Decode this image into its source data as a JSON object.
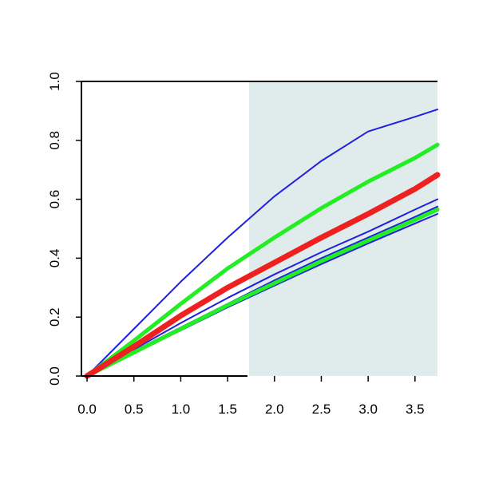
{
  "chart_data": {
    "type": "line",
    "title": "",
    "xlabel": "",
    "ylabel": "",
    "xlim": [
      -0.06,
      3.74
    ],
    "ylim": [
      0.0,
      1.0
    ],
    "grid": false,
    "legend": "none",
    "shaded_region": {
      "x_from": 1.73,
      "x_to": 3.74,
      "color": "#e0ecec"
    },
    "x_ticks": [
      "0.0",
      "0.5",
      "1.0",
      "1.5",
      "2.0",
      "2.5",
      "3.0",
      "3.5"
    ],
    "y_ticks": [
      "0.0",
      "0.2",
      "0.4",
      "0.6",
      "0.8",
      "1.0"
    ],
    "series": [
      {
        "color": "#2020dd",
        "style": "thin",
        "x": [
          0.0,
          0.5,
          1.0,
          1.5,
          2.0,
          2.5,
          3.0,
          3.5,
          3.74
        ],
        "y": [
          0.0,
          0.16,
          0.32,
          0.47,
          0.61,
          0.73,
          0.83,
          0.88,
          0.905
        ]
      },
      {
        "color": "#22ee22",
        "style": "thick",
        "x": [
          0.0,
          0.5,
          1.0,
          1.5,
          2.0,
          2.5,
          3.0,
          3.5,
          3.74
        ],
        "y": [
          0.0,
          0.12,
          0.245,
          0.365,
          0.47,
          0.57,
          0.66,
          0.74,
          0.785
        ]
      },
      {
        "color": "#ee2020",
        "style": "thickest",
        "x": [
          0.0,
          0.5,
          1.0,
          1.5,
          2.0,
          2.5,
          3.0,
          3.5,
          3.74
        ],
        "y": [
          0.0,
          0.1,
          0.205,
          0.3,
          0.385,
          0.47,
          0.55,
          0.635,
          0.683
        ]
      },
      {
        "color": "#2020dd",
        "style": "thin",
        "x": [
          0.0,
          0.5,
          1.0,
          1.5,
          2.0,
          2.5,
          3.0,
          3.5,
          3.74
        ],
        "y": [
          0.0,
          0.09,
          0.18,
          0.265,
          0.345,
          0.42,
          0.49,
          0.565,
          0.6
        ]
      },
      {
        "color": "#2020dd",
        "style": "thin",
        "x": [
          0.0,
          0.5,
          1.0,
          1.5,
          2.0,
          2.5,
          3.0,
          3.5,
          3.74
        ],
        "y": [
          0.0,
          0.085,
          0.165,
          0.245,
          0.325,
          0.4,
          0.47,
          0.54,
          0.575
        ]
      },
      {
        "color": "#22ee22",
        "style": "thick",
        "x": [
          0.0,
          0.5,
          1.0,
          1.5,
          2.0,
          2.5,
          3.0,
          3.5,
          3.74
        ],
        "y": [
          0.0,
          0.08,
          0.16,
          0.24,
          0.315,
          0.39,
          0.46,
          0.53,
          0.565
        ]
      },
      {
        "color": "#2020dd",
        "style": "thin",
        "x": [
          0.0,
          0.5,
          1.0,
          1.5,
          2.0,
          2.5,
          3.0,
          3.5,
          3.74
        ],
        "y": [
          0.0,
          0.078,
          0.155,
          0.233,
          0.307,
          0.38,
          0.45,
          0.518,
          0.55
        ]
      }
    ]
  }
}
